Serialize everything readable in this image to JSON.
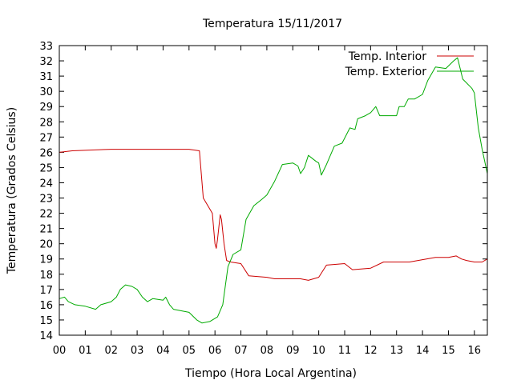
{
  "chart_data": {
    "type": "line",
    "title": "Temperatura 15/11/2017",
    "xlabel": "Tiempo (Hora Local Argentina)",
    "ylabel": "Temperatura (Grados Celsius)",
    "xlim": [
      0,
      16.5
    ],
    "ylim": [
      14,
      33
    ],
    "x_ticks": [
      0,
      1,
      2,
      3,
      4,
      5,
      6,
      7,
      8,
      9,
      10,
      11,
      12,
      13,
      14,
      15,
      16
    ],
    "x_tick_labels": [
      "00",
      "01",
      "02",
      "03",
      "04",
      "05",
      "06",
      "07",
      "08",
      "09",
      "10",
      "11",
      "12",
      "13",
      "14",
      "15",
      "16"
    ],
    "y_ticks": [
      14,
      15,
      16,
      17,
      18,
      19,
      20,
      21,
      22,
      23,
      24,
      25,
      26,
      27,
      28,
      29,
      30,
      31,
      32,
      33
    ],
    "grid": false,
    "legend_position": "top-right",
    "series": [
      {
        "name": "Temp. Interior",
        "color": "#cc0000",
        "x": [
          0,
          0.5,
          2,
          4,
          5.0,
          5.4,
          5.55,
          5.9,
          6.0,
          6.05,
          6.1,
          6.2,
          6.25,
          6.35,
          6.45,
          6.6,
          7.0,
          7.3,
          8.0,
          8.3,
          9.3,
          9.6,
          10.0,
          10.3,
          11.0,
          11.3,
          12.0,
          12.5,
          13.5,
          14.5,
          15.0,
          15.3,
          15.5,
          15.7,
          16.0,
          16.3,
          16.5
        ],
        "y": [
          26.0,
          26.1,
          26.2,
          26.2,
          26.2,
          26.1,
          23.0,
          22.0,
          20.0,
          19.7,
          20.3,
          21.9,
          21.6,
          20.0,
          18.9,
          18.8,
          18.7,
          17.9,
          17.8,
          17.7,
          17.7,
          17.6,
          17.8,
          18.6,
          18.7,
          18.3,
          18.4,
          18.8,
          18.8,
          19.1,
          19.1,
          19.2,
          19.0,
          18.9,
          18.8,
          18.8,
          19.0
        ]
      },
      {
        "name": "Temp. Exterior",
        "color": "#00aa00",
        "x": [
          0,
          0.2,
          0.35,
          0.6,
          1.0,
          1.4,
          1.6,
          2.0,
          2.2,
          2.35,
          2.55,
          2.8,
          3.0,
          3.2,
          3.4,
          3.6,
          4.0,
          4.1,
          4.25,
          4.4,
          4.7,
          5.0,
          5.3,
          5.5,
          5.8,
          6.1,
          6.3,
          6.5,
          6.7,
          7.0,
          7.2,
          7.5,
          7.8,
          8.0,
          8.3,
          8.6,
          9.0,
          9.2,
          9.3,
          9.45,
          9.6,
          9.9,
          10.0,
          10.1,
          10.3,
          10.6,
          10.9,
          11.2,
          11.4,
          11.5,
          11.8,
          12.0,
          12.2,
          12.35,
          12.6,
          12.85,
          13.0,
          13.1,
          13.3,
          13.45,
          13.7,
          14.0,
          14.2,
          14.5,
          14.9,
          15.2,
          15.35,
          15.55,
          15.9,
          16.0,
          16.15,
          16.3,
          16.5
        ],
        "y": [
          16.4,
          16.5,
          16.2,
          16.0,
          15.9,
          15.7,
          16.0,
          16.2,
          16.5,
          17.0,
          17.3,
          17.2,
          17.0,
          16.5,
          16.2,
          16.4,
          16.3,
          16.5,
          16.0,
          15.7,
          15.6,
          15.5,
          15.0,
          14.8,
          14.9,
          15.2,
          16.0,
          18.5,
          19.3,
          19.6,
          21.6,
          22.5,
          22.9,
          23.2,
          24.1,
          25.2,
          25.3,
          25.1,
          24.6,
          25.0,
          25.8,
          25.4,
          25.3,
          24.5,
          25.2,
          26.4,
          26.6,
          27.6,
          27.5,
          28.2,
          28.4,
          28.6,
          29.0,
          28.4,
          28.4,
          28.4,
          28.4,
          29.0,
          29.0,
          29.5,
          29.5,
          29.8,
          30.7,
          31.6,
          31.5,
          32.0,
          32.2,
          30.8,
          30.2,
          29.9,
          27.6,
          26.2,
          24.6
        ]
      }
    ]
  }
}
